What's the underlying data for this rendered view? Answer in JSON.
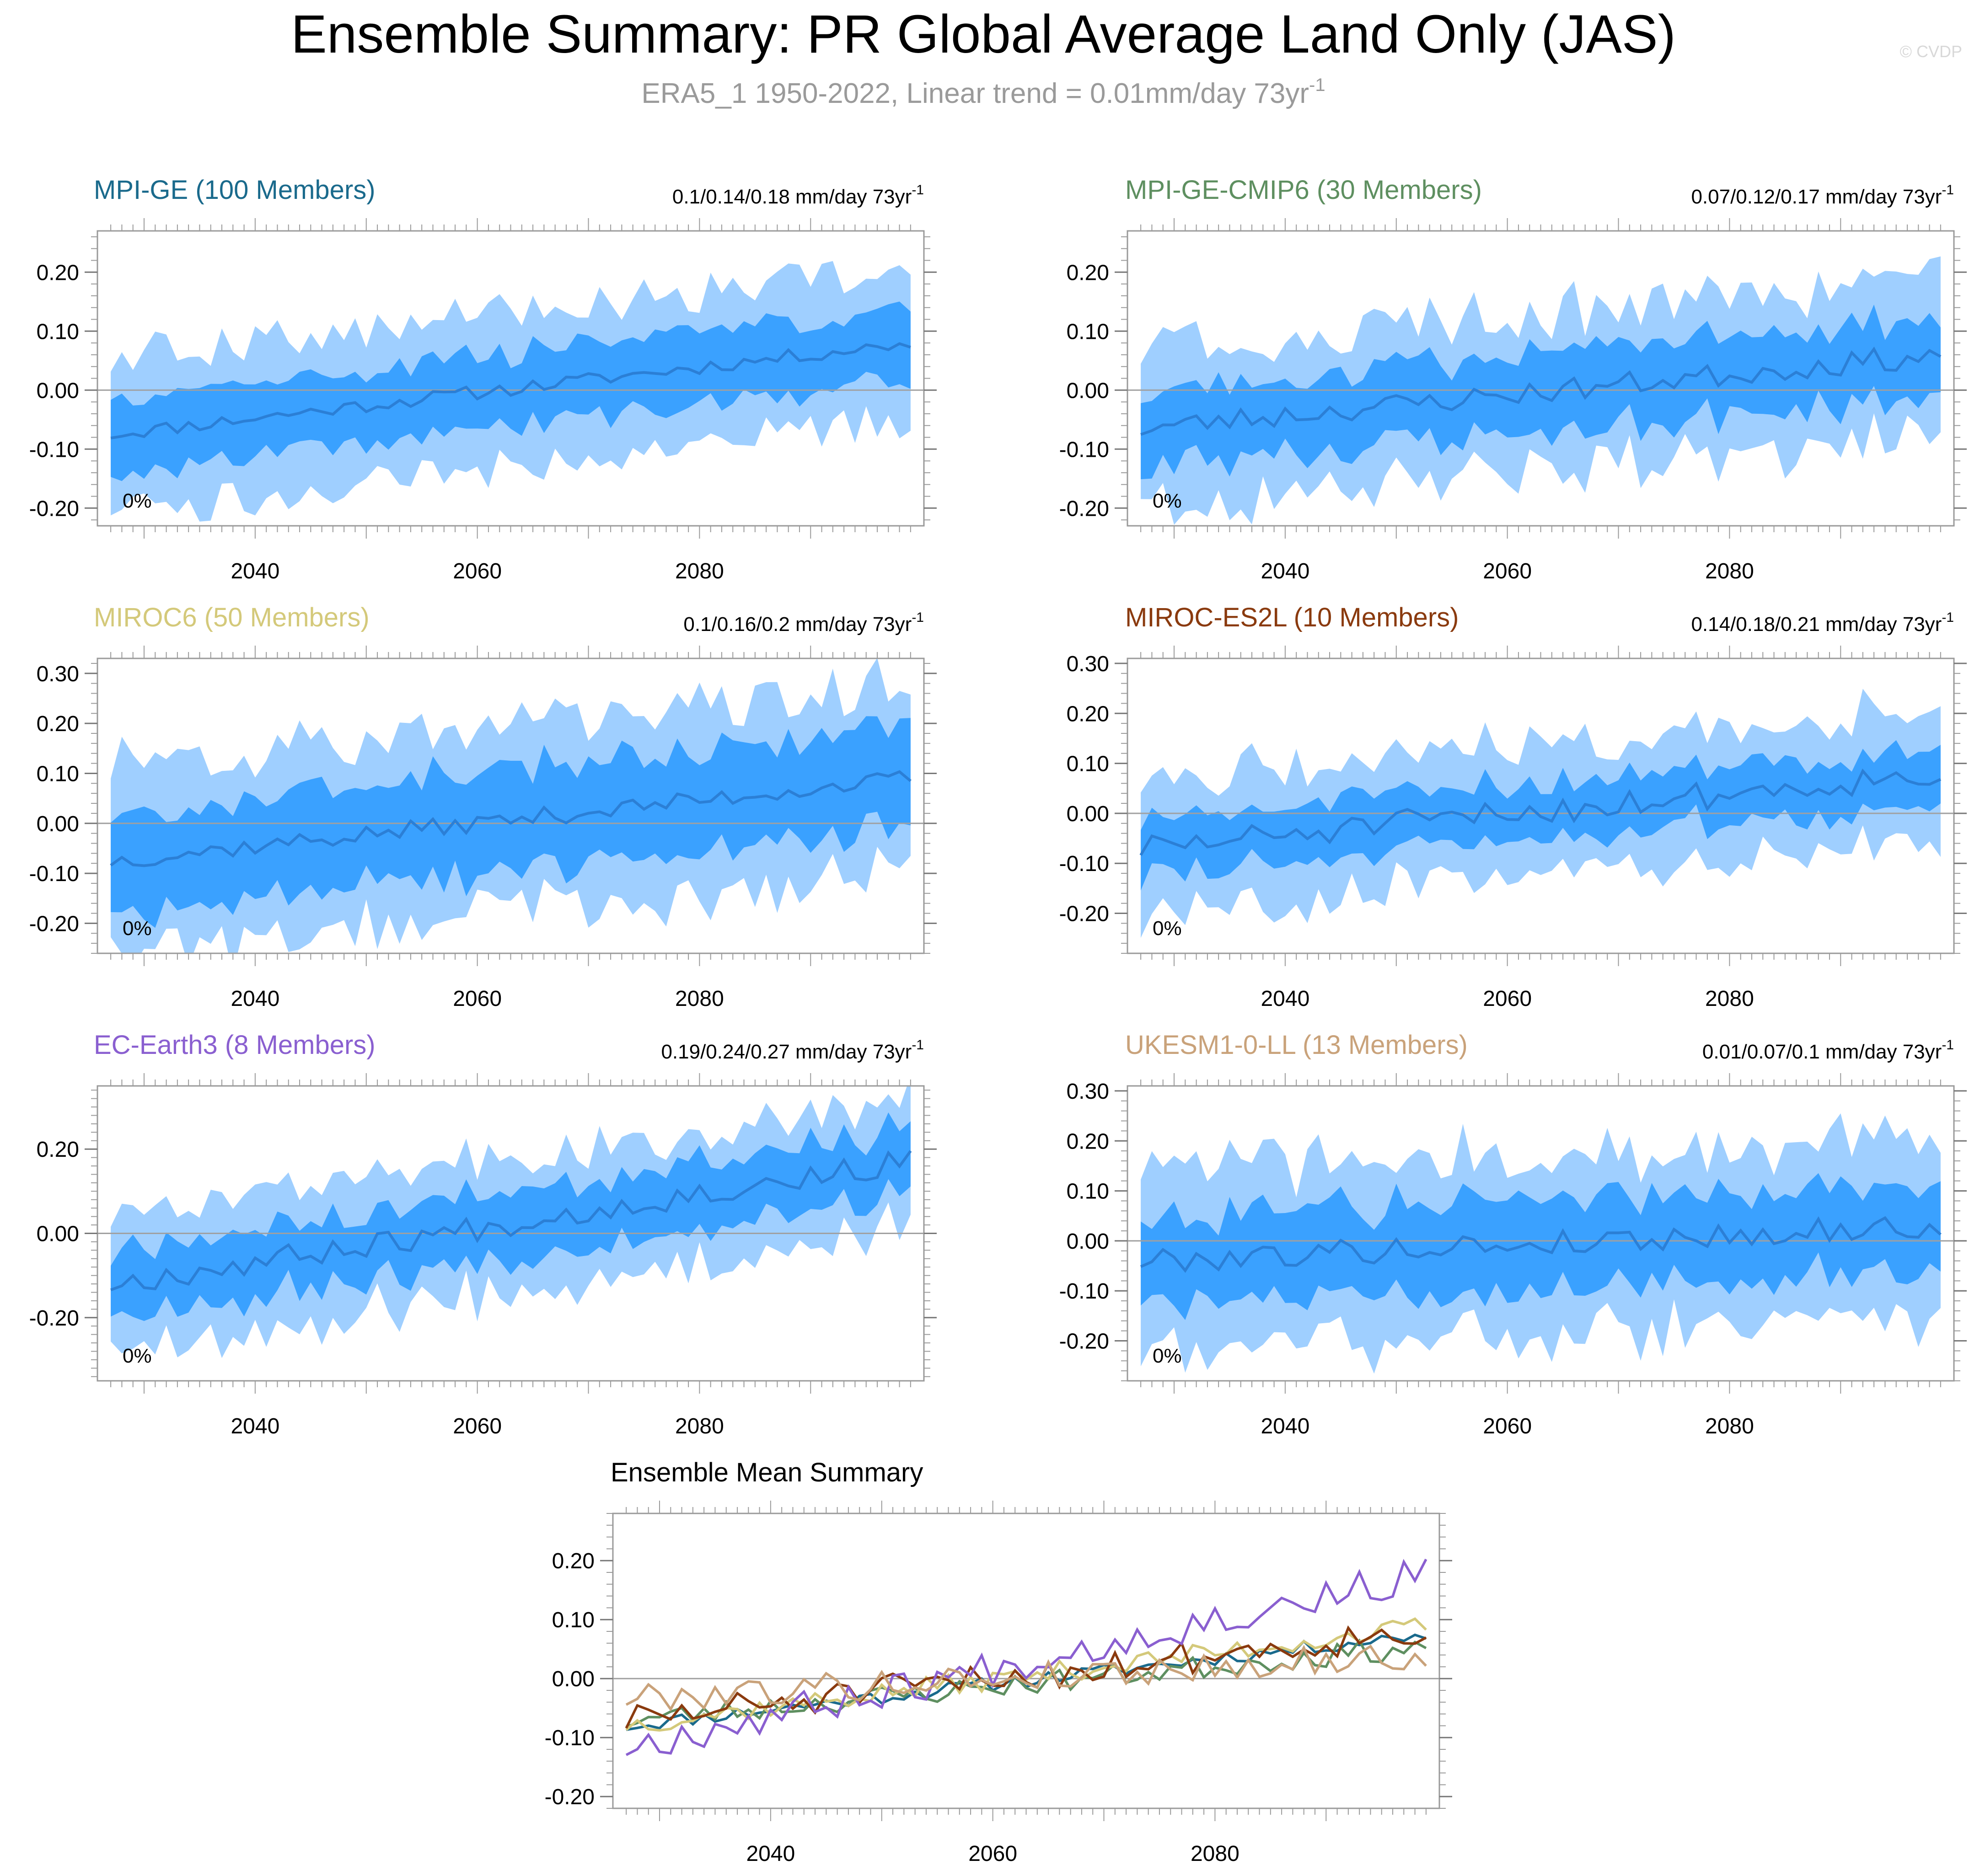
{
  "title": "Ensemble Summary: PR Global Average Land Only (JAS)",
  "subtitle_main": "ERA5_1 1950-2022, Linear trend = 0.01mm/day 73yr",
  "subtitle_sup": "-1",
  "watermark": "© CVDP",
  "colors": {
    "band_outer": "#9fcfff",
    "band_inner": "#3aa1ff",
    "mean_line": "#2b7fd6",
    "zero_line": "#a0a0a0",
    "axis": "#555555",
    "title": "#000000",
    "subtitle": "#9a9a9a",
    "watermark": "#d8d8d8"
  },
  "chart_data": [
    {
      "type": "area",
      "id": "mpi-ge",
      "title": "MPI-GE (100 Members)",
      "title_color": "#1a6a8c",
      "trend_text": "0.1/0.14/0.18 mm/day 73yr",
      "trend_sup": "-1",
      "pct_label": "0%",
      "x_range": [
        2027,
        2099
      ],
      "ylim": [
        -0.23,
        0.27
      ],
      "yticks": [
        -0.2,
        -0.1,
        0.0,
        0.1,
        0.2
      ],
      "ytick_labels": [
        "-0.20",
        "-0.10",
        "0.00",
        "0.10",
        "0.20"
      ],
      "xticks": [
        2040,
        2060,
        2080
      ],
      "xtick_labels": [
        "2040",
        "2060",
        "2080"
      ],
      "mean_start": -0.075,
      "mean_end": 0.08,
      "inner_half": 0.055,
      "outer_half": 0.115,
      "noise": 0.012,
      "seed": 11
    },
    {
      "type": "area",
      "id": "mpi-ge-cmip6",
      "title": "MPI-GE-CMIP6 (30 Members)",
      "title_color": "#5e8f60",
      "trend_text": "0.07/0.12/0.17 mm/day 73yr",
      "trend_sup": "-1",
      "pct_label": "0%",
      "x_range": [
        2027,
        2099
      ],
      "ylim": [
        -0.23,
        0.27
      ],
      "yticks": [
        -0.2,
        -0.1,
        0.0,
        0.1,
        0.2
      ],
      "ytick_labels": [
        "-0.20",
        "-0.10",
        "0.00",
        "0.10",
        "0.20"
      ],
      "xticks": [
        2040,
        2060,
        2080
      ],
      "xtick_labels": [
        "2040",
        "2060",
        "2080"
      ],
      "mean_start": -0.065,
      "mean_end": 0.06,
      "inner_half": 0.06,
      "outer_half": 0.12,
      "noise": 0.02,
      "seed": 23
    },
    {
      "type": "area",
      "id": "miroc6",
      "title": "MIROC6 (50 Members)",
      "title_color": "#d4c97a",
      "trend_text": "0.1/0.16/0.2 mm/day 73yr",
      "trend_sup": "-1",
      "pct_label": "0%",
      "x_range": [
        2027,
        2099
      ],
      "ylim": [
        -0.26,
        0.33
      ],
      "yticks": [
        -0.2,
        -0.1,
        0.0,
        0.1,
        0.2,
        0.3
      ],
      "ytick_labels": [
        "-0.20",
        "-0.10",
        "0.00",
        "0.10",
        "0.20",
        "0.30"
      ],
      "xticks": [
        2040,
        2060,
        2080
      ],
      "xtick_labels": [
        "2040",
        "2060",
        "2080"
      ],
      "mean_start": -0.075,
      "mean_end": 0.09,
      "inner_half": 0.09,
      "outer_half": 0.17,
      "noise": 0.018,
      "seed": 37
    },
    {
      "type": "area",
      "id": "miroc-es2l",
      "title": "MIROC-ES2L (10 Members)",
      "title_color": "#8a3a0e",
      "trend_text": "0.14/0.18/0.21 mm/day 73yr",
      "trend_sup": "-1",
      "pct_label": "0%",
      "x_range": [
        2027,
        2099
      ],
      "ylim": [
        -0.28,
        0.31
      ],
      "yticks": [
        -0.2,
        -0.1,
        0.0,
        0.1,
        0.2,
        0.3
      ],
      "ytick_labels": [
        "-0.20",
        "-0.10",
        "0.00",
        "0.10",
        "0.20",
        "0.30"
      ],
      "xticks": [
        2040,
        2060,
        2080
      ],
      "xtick_labels": [
        "2040",
        "2060",
        "2080"
      ],
      "mean_start": -0.07,
      "mean_end": 0.08,
      "inner_half": 0.05,
      "outer_half": 0.12,
      "noise": 0.028,
      "seed": 51
    },
    {
      "type": "area",
      "id": "ec-earth3",
      "title": "EC-Earth3 (8 Members)",
      "title_color": "#8a5fd0",
      "trend_text": "0.19/0.24/0.27 mm/day 73yr",
      "trend_sup": "-1",
      "pct_label": "0%",
      "x_range": [
        2027,
        2099
      ],
      "ylim": [
        -0.35,
        0.35
      ],
      "yticks": [
        -0.2,
        0.0,
        0.2
      ],
      "ytick_labels": [
        "-0.20",
        "0.00",
        "0.20"
      ],
      "xticks": [
        2040,
        2060,
        2080
      ],
      "xtick_labels": [
        "2040",
        "2060",
        "2080"
      ],
      "mean_start": -0.12,
      "mean_end": 0.17,
      "inner_half": 0.07,
      "outer_half": 0.14,
      "noise": 0.03,
      "seed": 67
    },
    {
      "type": "area",
      "id": "ukesm1-0-ll",
      "title": "UKESM1-0-LL (13 Members)",
      "title_color": "#c9a27a",
      "trend_text": "0.01/0.07/0.1 mm/day 73yr",
      "trend_sup": "-1",
      "pct_label": "0%",
      "x_range": [
        2027,
        2099
      ],
      "ylim": [
        -0.28,
        0.31
      ],
      "yticks": [
        -0.2,
        -0.1,
        0.0,
        0.1,
        0.2,
        0.3
      ],
      "ytick_labels": [
        "-0.20",
        "-0.10",
        "0.00",
        "0.10",
        "0.20",
        "0.30"
      ],
      "xticks": [
        2040,
        2060,
        2080
      ],
      "xtick_labels": [
        "2040",
        "2060",
        "2080"
      ],
      "mean_start": -0.04,
      "mean_end": 0.03,
      "inner_half": 0.08,
      "outer_half": 0.16,
      "noise": 0.025,
      "seed": 79
    },
    {
      "type": "line",
      "id": "ensemble-mean-summary",
      "title": "Ensemble Mean Summary",
      "x_range": [
        2027,
        2099
      ],
      "ylim": [
        -0.22,
        0.28
      ],
      "yticks": [
        -0.2,
        -0.1,
        0.0,
        0.1,
        0.2
      ],
      "ytick_labels": [
        "-0.20",
        "-0.10",
        "0.00",
        "0.10",
        "0.20"
      ],
      "xticks": [
        2040,
        2060,
        2080
      ],
      "xtick_labels": [
        "2040",
        "2060",
        "2080"
      ],
      "series": [
        {
          "name": "MPI-GE",
          "color": "#1a6a8c",
          "mean_start": -0.075,
          "mean_end": 0.08,
          "noise": 0.012,
          "seed": 11
        },
        {
          "name": "MPI-GE-CMIP6",
          "color": "#5e8f60",
          "mean_start": -0.065,
          "mean_end": 0.06,
          "noise": 0.02,
          "seed": 23
        },
        {
          "name": "MIROC6",
          "color": "#d4c97a",
          "mean_start": -0.075,
          "mean_end": 0.09,
          "noise": 0.018,
          "seed": 37
        },
        {
          "name": "MIROC-ES2L",
          "color": "#8a3a0e",
          "mean_start": -0.07,
          "mean_end": 0.08,
          "noise": 0.028,
          "seed": 51
        },
        {
          "name": "EC-Earth3",
          "color": "#8a5fd0",
          "mean_start": -0.12,
          "mean_end": 0.17,
          "noise": 0.03,
          "seed": 67
        },
        {
          "name": "UKESM1-0-LL",
          "color": "#c9a27a",
          "mean_start": -0.04,
          "mean_end": 0.03,
          "noise": 0.025,
          "seed": 79
        }
      ]
    }
  ]
}
